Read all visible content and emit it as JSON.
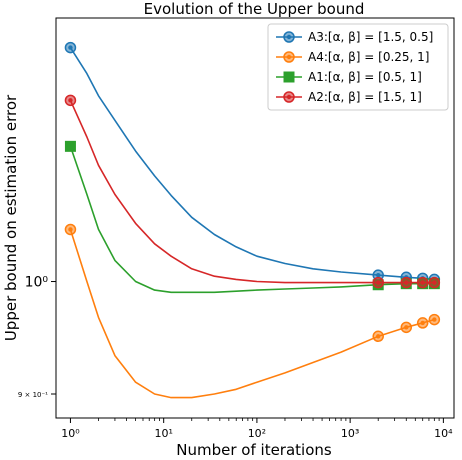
{
  "chart_data": {
    "type": "line",
    "title": "Evolution of the Upper bound",
    "xlabel": "Number of iterations",
    "ylabel": "Upper bound on estimation error",
    "xscale": "log",
    "yscale": "log",
    "xlim": [
      0.7,
      13000
    ],
    "ylim": [
      0.88,
      1.28
    ],
    "x_ticks": [
      {
        "value": 1,
        "label": "10⁰"
      },
      {
        "value": 10,
        "label": "10¹"
      },
      {
        "value": 100,
        "label": "10²"
      },
      {
        "value": 1000,
        "label": "10³"
      },
      {
        "value": 10000,
        "label": "10⁴"
      }
    ],
    "y_ticks": [
      {
        "value": 1.0,
        "label": "10⁰",
        "size": "big"
      },
      {
        "value": 0.9,
        "label": "9 × 10⁻¹",
        "size": "small"
      }
    ],
    "grid": false,
    "legend_position": "top-right",
    "series": [
      {
        "name": "A3:[α, β] = [1.5, 0.5]",
        "color": "#1f77b4",
        "marker": "circle",
        "x": [
          1,
          1.5,
          2,
          3,
          5,
          8,
          12,
          20,
          35,
          60,
          100,
          200,
          400,
          800,
          2000,
          4000,
          6000,
          8000
        ],
        "y": [
          1.245,
          1.215,
          1.19,
          1.163,
          1.13,
          1.104,
          1.084,
          1.062,
          1.045,
          1.033,
          1.024,
          1.017,
          1.012,
          1.009,
          1.006,
          1.004,
          1.003,
          1.002
        ],
        "marker_x": [
          1,
          2000,
          4000,
          6000,
          8000
        ],
        "marker_y": [
          1.245,
          1.006,
          1.004,
          1.003,
          1.002
        ]
      },
      {
        "name": "A4:[α, β] = [0.25, 1]",
        "color": "#ff7f0e",
        "marker": "circle",
        "x": [
          1,
          1.5,
          2,
          3,
          5,
          8,
          12,
          20,
          35,
          60,
          100,
          200,
          400,
          800,
          2000,
          4000,
          6000,
          8000
        ],
        "y": [
          1.05,
          1.0,
          0.967,
          0.933,
          0.91,
          0.9,
          0.897,
          0.897,
          0.9,
          0.904,
          0.91,
          0.918,
          0.927,
          0.936,
          0.95,
          0.958,
          0.962,
          0.965
        ],
        "marker_x": [
          1,
          2000,
          4000,
          6000,
          8000
        ],
        "marker_y": [
          1.05,
          0.95,
          0.958,
          0.962,
          0.965
        ]
      },
      {
        "name": "A1:[α, β] = [0.5, 1]",
        "color": "#2ca02c",
        "marker": "square",
        "x": [
          1,
          1.5,
          2,
          3,
          5,
          8,
          12,
          20,
          35,
          60,
          100,
          200,
          400,
          800,
          2000,
          4000,
          6000,
          8000
        ],
        "y": [
          1.135,
          1.085,
          1.05,
          1.02,
          1.0,
          0.992,
          0.99,
          0.99,
          0.99,
          0.991,
          0.992,
          0.993,
          0.994,
          0.995,
          0.997,
          0.998,
          0.998,
          0.998
        ],
        "marker_x": [
          1,
          2000,
          4000,
          6000,
          8000
        ],
        "marker_y": [
          1.135,
          0.997,
          0.998,
          0.998,
          0.998
        ]
      },
      {
        "name": "A2:[α, β] = [1.5, 1]",
        "color": "#d62728",
        "marker": "circle",
        "x": [
          1,
          1.5,
          2,
          3,
          5,
          8,
          12,
          20,
          35,
          60,
          100,
          200,
          400,
          800,
          2000,
          4000,
          6000,
          8000
        ],
        "y": [
          1.185,
          1.145,
          1.115,
          1.085,
          1.056,
          1.036,
          1.024,
          1.012,
          1.005,
          1.002,
          1.0,
          0.999,
          0.999,
          0.999,
          0.999,
          0.999,
          0.999,
          0.999
        ],
        "marker_x": [
          1,
          2000,
          4000,
          6000,
          8000
        ],
        "marker_y": [
          1.185,
          0.999,
          0.999,
          0.999,
          0.999
        ]
      }
    ]
  }
}
